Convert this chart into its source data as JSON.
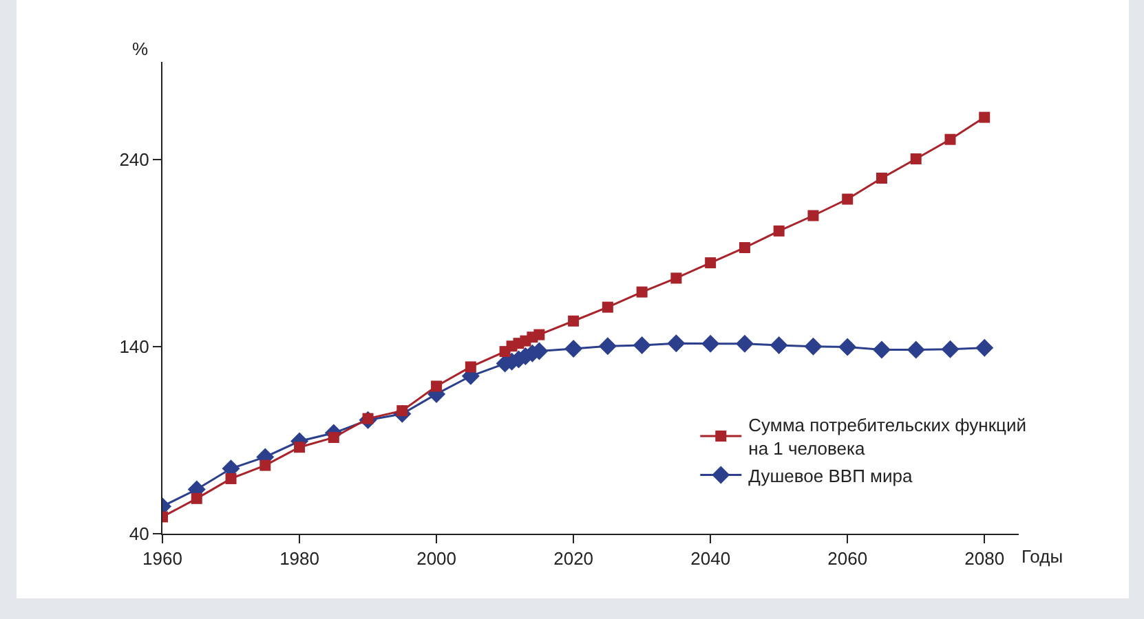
{
  "chart_data": {
    "type": "line",
    "xlabel": "Годы",
    "ylabel": "%",
    "x": [
      1960,
      1965,
      1970,
      1975,
      1980,
      1985,
      1990,
      1995,
      2000,
      2005,
      2010,
      2011,
      2012,
      2013,
      2014,
      2015,
      2020,
      2025,
      2030,
      2035,
      2040,
      2045,
      2050,
      2055,
      2060,
      2065,
      2070,
      2075,
      2080
    ],
    "series": [
      {
        "name": "Сумма потребительских функций\nна 1 человека",
        "color": "#a8232a",
        "marker": "square",
        "values": [
          49,
          58.8,
          69.4,
          76.5,
          86.2,
          91.4,
          101.5,
          105.7,
          118.8,
          129.1,
          137.3,
          140.2,
          141.7,
          143,
          145,
          146.3,
          153.6,
          161,
          169.1,
          176.5,
          184.7,
          192.8,
          201.7,
          209.9,
          218.7,
          229.9,
          240.2,
          250.6,
          262.4
        ]
      },
      {
        "name": "Душевое ВВП мира",
        "color": "#2b3f8c",
        "marker": "diamond",
        "values": [
          54.6,
          63.7,
          74.8,
          81,
          89.4,
          93.8,
          100.7,
          104,
          114.6,
          124.2,
          130.9,
          131.9,
          133.1,
          134.8,
          136.3,
          137.5,
          138.8,
          140.2,
          140.7,
          141.7,
          141.5,
          141.5,
          140.7,
          140,
          139.7,
          138.3,
          138.3,
          138.5,
          139.3
        ]
      }
    ],
    "xlim": [
      1960,
      2085
    ],
    "xticks": [
      1960,
      1980,
      2000,
      2020,
      2040,
      2060,
      2080
    ],
    "ylim": [
      40,
      292
    ],
    "yticks": [
      40,
      140,
      240
    ],
    "grid": false,
    "legend": "bottom right",
    "line_style": "solid"
  }
}
